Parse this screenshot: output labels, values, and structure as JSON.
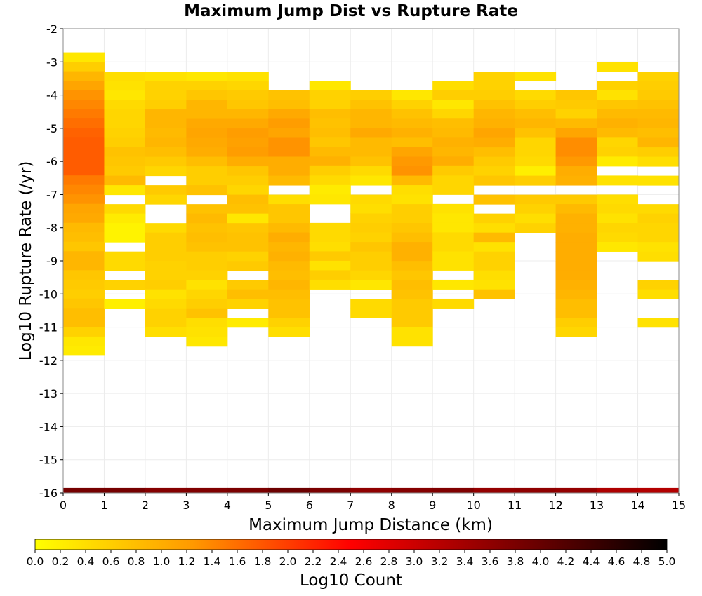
{
  "chart_data": {
    "type": "heatmap",
    "title": "Maximum Jump Dist vs Rupture Rate",
    "xlabel": "Maximum Jump Distance (km)",
    "ylabel": "Log10 Rupture Rate (/yr)",
    "xlim": [
      0,
      15
    ],
    "ylim": [
      -16,
      -2
    ],
    "x_ticks": [
      "0",
      "1",
      "2",
      "3",
      "4",
      "5",
      "6",
      "7",
      "8",
      "9",
      "10",
      "11",
      "12",
      "13",
      "14",
      "15"
    ],
    "y_ticks": [
      "-2",
      "-3",
      "-4",
      "-5",
      "-6",
      "-7",
      "-8",
      "-9",
      "-10",
      "-11",
      "-12",
      "-13",
      "-14",
      "-15",
      "-16"
    ],
    "colorbar": {
      "label": "Log10 Count",
      "range": [
        0,
        5
      ],
      "ticks": [
        "0.0",
        "0.2",
        "0.4",
        "0.6",
        "0.8",
        "1.0",
        "1.2",
        "1.4",
        "1.6",
        "1.8",
        "2.0",
        "2.2",
        "2.4",
        "2.6",
        "2.8",
        "3.0",
        "3.2",
        "3.4",
        "3.6",
        "3.8",
        "4.0",
        "4.2",
        "4.4",
        "4.6",
        "4.8",
        "5.0"
      ],
      "colors": [
        "#ffff00",
        "#ff9900",
        "#ff0000",
        "#800000",
        "#000000"
      ]
    },
    "grid": true,
    "bin_height": 0.2857,
    "totals_row": {
      "y_range": [
        -16,
        -15.85
      ],
      "values": [
        3.85,
        3.85,
        3.7,
        3.75,
        3.8,
        3.95,
        3.8,
        3.6,
        3.7,
        3.75,
        3.55,
        3.6,
        3.55,
        3.3,
        3.25
      ]
    },
    "columns": [
      {
        "x": 0,
        "y_top": -2.71,
        "values": [
          0.3,
          0.6,
          0.9,
          1.1,
          1.3,
          1.4,
          1.5,
          1.6,
          1.7,
          1.75,
          1.75,
          1.75,
          1.75,
          1.5,
          1.4,
          1.3,
          1.1,
          1.05,
          0.85,
          0.8,
          0.7,
          0.9,
          0.9,
          0.7,
          0.65,
          0.6,
          0.7,
          0.8,
          0.8,
          0.55,
          0.3,
          0.25
        ]
      },
      {
        "x": 1,
        "y_top": -3.29,
        "values": [
          0.4,
          0.35,
          0.3,
          0.45,
          0.5,
          0.5,
          0.55,
          0.6,
          0.75,
          0.7,
          0.65,
          0.85,
          0.3,
          null,
          0.45,
          0.25,
          0.15,
          0.15,
          null,
          0.45,
          0.45,
          null,
          0.55,
          null,
          0.2
        ]
      },
      {
        "x": 2,
        "y_top": -3.29,
        "values": [
          0.35,
          0.55,
          0.55,
          0.6,
          0.9,
          0.9,
          0.85,
          0.9,
          0.8,
          0.65,
          0.5,
          null,
          0.65,
          0.5,
          null,
          null,
          0.45,
          0.6,
          0.6,
          0.6,
          0.55,
          0.55,
          0.6,
          0.35,
          0.45,
          0.55,
          0.55,
          0.4
        ]
      },
      {
        "x": 3,
        "y_top": -3.29,
        "values": [
          0.3,
          0.55,
          0.7,
          0.9,
          0.9,
          1.05,
          1.1,
          1.05,
          1.0,
          0.8,
          0.6,
          0.6,
          0.75,
          null,
          0.75,
          0.85,
          0.75,
          0.8,
          0.75,
          0.6,
          0.6,
          0.55,
          0.35,
          0.5,
          0.6,
          0.75,
          0.4,
          0.35,
          0.3
        ]
      },
      {
        "x": 4,
        "y_top": -3.29,
        "values": [
          0.35,
          0.5,
          0.65,
          0.7,
          0.9,
          1.05,
          1.2,
          1.15,
          1.2,
          1.0,
          0.7,
          0.6,
          0.5,
          0.8,
          0.75,
          0.3,
          0.7,
          0.75,
          0.75,
          0.55,
          0.65,
          null,
          0.65,
          0.8,
          0.55,
          null,
          0.25
        ]
      },
      {
        "x": 5,
        "y_top": -3.86,
        "values": [
          0.75,
          0.8,
          1.05,
          1.2,
          1.1,
          1.3,
          1.3,
          1.0,
          1.0,
          0.85,
          null,
          0.4,
          0.7,
          0.7,
          0.85,
          1.0,
          0.9,
          0.95,
          0.85,
          0.8,
          0.9,
          0.8,
          0.75,
          0.75,
          0.55,
          0.4
        ]
      },
      {
        "x": 6,
        "y_top": -3.57,
        "values": [
          0.3,
          0.55,
          0.55,
          0.8,
          0.75,
          0.8,
          0.7,
          0.85,
          0.95,
          0.6,
          0.45,
          0.25,
          0.3,
          null,
          null,
          0.45,
          0.45,
          0.4,
          0.65,
          0.35,
          0.6,
          0.4
        ]
      },
      {
        "x": 7,
        "y_top": -3.86,
        "values": [
          0.6,
          0.75,
          0.9,
          0.9,
          1.05,
          0.85,
          0.85,
          0.75,
          0.45,
          0.3,
          null,
          0.45,
          0.4,
          0.55,
          0.6,
          0.55,
          0.7,
          0.6,
          0.6,
          0.5,
          0.3,
          null,
          0.45,
          0.45
        ]
      },
      {
        "x": 8,
        "y_top": -3.86,
        "values": [
          0.3,
          0.55,
          0.75,
          0.85,
          0.95,
          0.8,
          1.1,
          1.25,
          1.3,
          0.85,
          0.4,
          0.35,
          0.6,
          0.6,
          0.7,
          0.8,
          0.95,
          0.95,
          0.8,
          0.7,
          0.8,
          0.75,
          0.65,
          0.65,
          0.65,
          0.35,
          0.35
        ]
      },
      {
        "x": 9,
        "y_top": -3.57,
        "values": [
          0.4,
          0.6,
          0.3,
          0.5,
          0.8,
          0.85,
          0.95,
          0.9,
          1.0,
          0.65,
          0.5,
          0.5,
          null,
          0.35,
          0.3,
          0.3,
          0.45,
          0.45,
          0.35,
          0.35,
          null,
          0.3,
          null,
          0.45
        ]
      },
      {
        "x": 10,
        "y_top": -3.29,
        "values": [
          0.55,
          0.55,
          0.6,
          0.75,
          0.9,
          0.95,
          1.1,
          1.0,
          0.8,
          0.65,
          0.55,
          0.7,
          null,
          0.75,
          null,
          0.55,
          0.4,
          0.85,
          0.35,
          0.55,
          0.55,
          0.4,
          0.35,
          0.75
        ]
      },
      {
        "x": 11,
        "y_top": -3.29,
        "values": [
          0.35,
          null,
          0.45,
          0.6,
          0.8,
          0.9,
          0.75,
          0.5,
          0.5,
          0.45,
          0.2,
          0.6,
          null,
          0.65,
          0.55,
          0.4,
          0.55
        ]
      },
      {
        "x": 12,
        "y_top": -3.86,
        "values": [
          0.7,
          0.65,
          0.55,
          0.85,
          1.1,
          1.35,
          1.35,
          1.25,
          1.0,
          0.95,
          null,
          0.65,
          0.85,
          0.95,
          0.95,
          1.0,
          1.0,
          1.0,
          1.0,
          1.0,
          0.95,
          0.9,
          0.8,
          0.8,
          0.6,
          0.5
        ]
      },
      {
        "x": 13,
        "y_top": -3.0,
        "values": [
          0.35,
          null,
          0.55,
          0.35,
          0.7,
          0.85,
          0.95,
          0.85,
          0.5,
          0.55,
          0.25,
          null,
          0.35,
          null,
          0.4,
          0.45,
          0.35,
          0.5,
          0.45,
          0.3
        ]
      },
      {
        "x": 14,
        "y_top": -3.29,
        "values": [
          0.55,
          0.6,
          0.65,
          0.75,
          0.85,
          0.9,
          0.8,
          0.9,
          0.6,
          0.4,
          null,
          0.35,
          null,
          null,
          0.45,
          0.55,
          0.5,
          0.5,
          0.35,
          0.4,
          null,
          null,
          0.55,
          0.4,
          null,
          null,
          0.35
        ]
      }
    ]
  }
}
